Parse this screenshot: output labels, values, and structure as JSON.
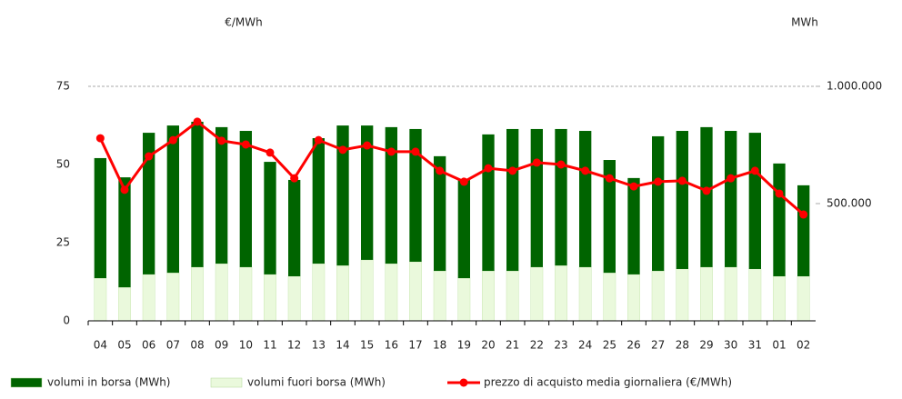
{
  "chart_data": {
    "type": "bar",
    "ylabel": "€/MWh",
    "y2label": "MWh",
    "categories": [
      "04",
      "05",
      "06",
      "07",
      "08",
      "09",
      "10",
      "11",
      "12",
      "13",
      "14",
      "15",
      "16",
      "17",
      "18",
      "19",
      "20",
      "21",
      "22",
      "23",
      "24",
      "25",
      "26",
      "27",
      "28",
      "29",
      "30",
      "31",
      "01",
      "02"
    ],
    "ylim": [
      0,
      75
    ],
    "yticks": [
      0,
      25,
      50,
      75
    ],
    "y2lim": [
      0,
      1000000
    ],
    "y2ticks": [
      {
        "value": 500000,
        "label": "500.000"
      },
      {
        "value": 1000000,
        "label": "1.000.000"
      }
    ],
    "series": [
      {
        "name": "volumi in borsa (MWh)",
        "type": "bar",
        "axis": "y2",
        "color": "#006400",
        "values": [
          512000,
          469000,
          604000,
          628000,
          620000,
          582000,
          581000,
          480000,
          411000,
          535000,
          597000,
          573000,
          582000,
          566000,
          489000,
          419000,
          582000,
          605000,
          589000,
          582000,
          581000,
          481000,
          411000,
          574000,
          589000,
          597000,
          581000,
          581000,
          481000,
          388000
        ]
      },
      {
        "name": "volumi fuori borsa (MWh)",
        "type": "bar",
        "axis": "y2",
        "color": "#eaf9dc",
        "values": [
          182000,
          143000,
          198000,
          205000,
          229000,
          244000,
          229000,
          198000,
          190000,
          244000,
          236000,
          260000,
          244000,
          252000,
          213000,
          182000,
          213000,
          213000,
          229000,
          236000,
          229000,
          205000,
          198000,
          213000,
          221000,
          229000,
          229000,
          221000,
          190000,
          190000
        ]
      },
      {
        "name": "prezzo di acquisto media giornaliera (€/MWh)",
        "type": "line",
        "color": "#ff0000",
        "values": [
          58.4,
          41.9,
          52.6,
          57.8,
          63.7,
          57.6,
          56.4,
          53.8,
          45.6,
          57.8,
          54.7,
          56.1,
          54.1,
          54.1,
          48.0,
          44.5,
          48.8,
          48.0,
          50.6,
          50.0,
          48.0,
          45.6,
          43.0,
          44.5,
          44.8,
          41.6,
          45.6,
          48.0,
          40.7,
          34.0
        ]
      }
    ]
  }
}
